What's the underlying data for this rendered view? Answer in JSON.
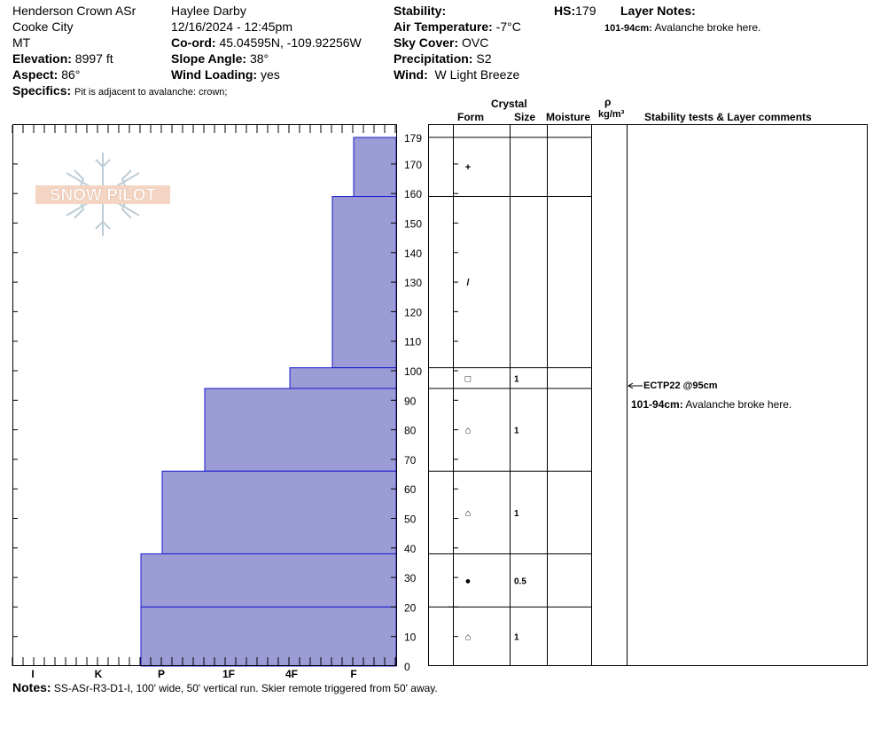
{
  "header": {
    "location_name": "Henderson Crown ASr",
    "location_city": "Cooke City",
    "location_state": "MT",
    "elevation_label": "Elevation:",
    "elevation_value": "8997 ft",
    "aspect_label": "Aspect:",
    "aspect_value": "86°",
    "observer": "Haylee Darby",
    "datetime": "12/16/2024 - 12:45pm",
    "coord_label": "Co-ord:",
    "coord_value": "45.04595N, -109.92256W",
    "slope_label": "Slope Angle:",
    "slope_value": "38°",
    "wind_loading_label": "Wind Loading:",
    "wind_loading_value": "yes",
    "stability_label": "Stability:",
    "stability_value": "",
    "air_temp_label": "Air Temperature:",
    "air_temp_value": "-7°C",
    "sky_label": "Sky Cover:",
    "sky_value": "OVC",
    "precip_label": "Precipitation:",
    "precip_value": "S2",
    "wind_label": "Wind:",
    "wind_value": "W Light Breeze",
    "hs_label": "HS:",
    "hs_value": "179",
    "layer_notes_label": "Layer Notes:",
    "layer_note_range": "101-94cm:",
    "layer_note_text": "Avalanche broke here.",
    "specifics_label": "Specifics:",
    "specifics_value": "Pit is adjacent to avalanche: crown;"
  },
  "columns": {
    "crystal": "Crystal",
    "form": "Form",
    "size": "Size",
    "moisture": "Moisture",
    "rho": "ρ",
    "density_unit": "kg/m³",
    "stability_header": "Stability tests & Layer comments"
  },
  "logo": {
    "text": "SNOW PILOT"
  },
  "chart_data": {
    "type": "snow-profile",
    "y_axis": {
      "min": 0,
      "max": 179,
      "ticks": [
        0,
        10,
        20,
        30,
        40,
        50,
        60,
        70,
        80,
        90,
        100,
        110,
        120,
        130,
        140,
        150,
        160,
        170,
        179
      ]
    },
    "hardness_scale": [
      "I",
      "K",
      "P",
      "1F",
      "4F",
      "F"
    ],
    "layers": [
      {
        "top": 179,
        "bottom": 159,
        "hardness": "F",
        "form": "+",
        "size": ""
      },
      {
        "top": 159,
        "bottom": 101,
        "hardness": "4F+",
        "form": "/",
        "size": ""
      },
      {
        "top": 101,
        "bottom": 94,
        "hardness": "4F",
        "form": "□",
        "size": "1"
      },
      {
        "top": 94,
        "bottom": 66,
        "hardness": "1F",
        "form": "⌂",
        "size": "1"
      },
      {
        "top": 66,
        "bottom": 38,
        "hardness": "P+",
        "form": "⌂",
        "size": "1"
      },
      {
        "top": 38,
        "bottom": 20,
        "hardness": "P-",
        "form": "●",
        "size": "0.5"
      },
      {
        "top": 20,
        "bottom": 0,
        "hardness": "P-",
        "form": "⌂",
        "size": "1"
      }
    ],
    "stability_test": {
      "label": "ECTP22 @95cm",
      "depth": 95
    },
    "layer_comment": {
      "range": "101-94cm:",
      "text": "Avalanche broke here."
    }
  },
  "notes": {
    "label": "Notes:",
    "text": "SS-ASr-R3-D1-I, 100' wide, 50' vertical run. Skier remote triggered from 50' away."
  }
}
